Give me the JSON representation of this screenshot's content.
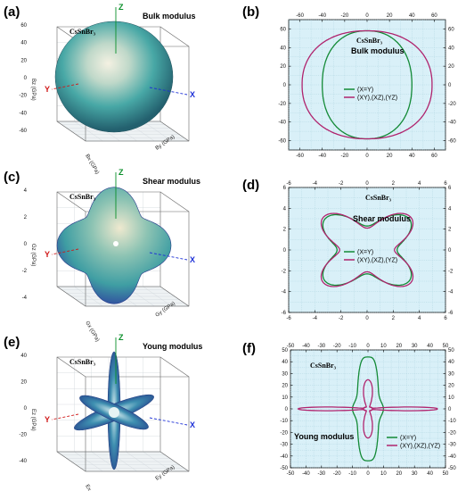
{
  "panels_3d": [
    {
      "label": "(a)",
      "compound": "CsSnBr₃",
      "title": "Bulk modulus",
      "axis_letters": [
        "Z",
        "Y",
        "X"
      ],
      "z_ticks": [
        "60",
        "40",
        "20",
        "0",
        "-20",
        "-40",
        "-60"
      ],
      "axis_names": [
        "Bz (GPa)",
        "Bx (GPa)",
        "By (GPa)"
      ],
      "surface": "sphere",
      "colors": {
        "outer": "#23606e",
        "mid": "#48a8a6",
        "highlight": "#f4f1e2"
      }
    },
    {
      "label": "(c)",
      "compound": "CsSnBr₃",
      "title": "Shear modulus",
      "axis_letters": [
        "Z",
        "Y",
        "X"
      ],
      "z_ticks": [
        "4",
        "2",
        "0",
        "-2",
        "-4"
      ],
      "axis_names": [
        "Gz (GPa)",
        "Gx (GPa)",
        "Gy (GPa)"
      ],
      "surface": "cube",
      "colors": {
        "outer": "#2e3f9e",
        "mid": "#3f9ea3",
        "highlight": "#efe9cf"
      }
    },
    {
      "label": "(e)",
      "compound": "CsSnBr₃",
      "title": "Young modulus",
      "axis_letters": [
        "Z",
        "Y",
        "X"
      ],
      "z_ticks": [
        "40",
        "20",
        "0",
        "-20",
        "-40"
      ],
      "axis_names": [
        "Ez (GPa)",
        "Ex (GPa)",
        "Ey (GPa)"
      ],
      "surface": "cross",
      "colors": {
        "outer": "#233f8a",
        "mid": "#3e8fb0",
        "highlight": "#d8eef0"
      }
    }
  ],
  "chart_data": [
    {
      "label": "(b)",
      "type": "line",
      "subtype": "polar-projection",
      "compound": "CsSnBr₃",
      "title": "Bulk modulus",
      "xlim": [
        -70,
        70
      ],
      "ylim": [
        -70,
        70
      ],
      "ticks": [
        -60,
        -40,
        -20,
        0,
        20,
        40,
        60
      ],
      "grid": true,
      "legend_position": "center",
      "series": [
        {
          "name": "(X=Y)",
          "color": "#138a36",
          "shape": "oval",
          "rx": 40,
          "ry": 58,
          "p": 0.35
        },
        {
          "name": "(XY),(XZ),(YZ)",
          "color": "#b0246e",
          "shape": "oval",
          "rx": 58,
          "ry": 58,
          "p": 0.35
        }
      ]
    },
    {
      "label": "(d)",
      "type": "line",
      "subtype": "polar-projection",
      "compound": "CsSnBr₃",
      "title": "Shear modulus",
      "xlim": [
        -6,
        6
      ],
      "ylim": [
        -6,
        6
      ],
      "ticks": [
        -6,
        -4,
        -2,
        0,
        2,
        4,
        6
      ],
      "grid": true,
      "legend_position": "center",
      "series": [
        {
          "name": "(X=Y)",
          "color": "#138a36",
          "shape": "quartic",
          "base": 2.3,
          "amp": 2.1
        },
        {
          "name": "(XY),(XZ),(YZ)",
          "color": "#b0246e",
          "shape": "quartic",
          "base": 2.1,
          "amp": 2.5
        }
      ]
    },
    {
      "label": "(f)",
      "type": "line",
      "subtype": "polar-projection",
      "compound": "CsSnBr₃",
      "title": "Young modulus",
      "xlim": [
        -50,
        50
      ],
      "ylim": [
        -50,
        50
      ],
      "ticks": [
        -50,
        -40,
        -30,
        -20,
        -10,
        0,
        10,
        20,
        30,
        40,
        50
      ],
      "grid": true,
      "legend_position": "bottom-right",
      "series": [
        {
          "name": "(X=Y)",
          "color": "#138a36",
          "shape": "lens",
          "rx": 7,
          "ry": 44,
          "neck": 3
        },
        {
          "name": "(XY),(XZ),(YZ)",
          "color": "#b0246e",
          "shape": "cross",
          "arm": 45,
          "core": 3
        }
      ]
    }
  ]
}
